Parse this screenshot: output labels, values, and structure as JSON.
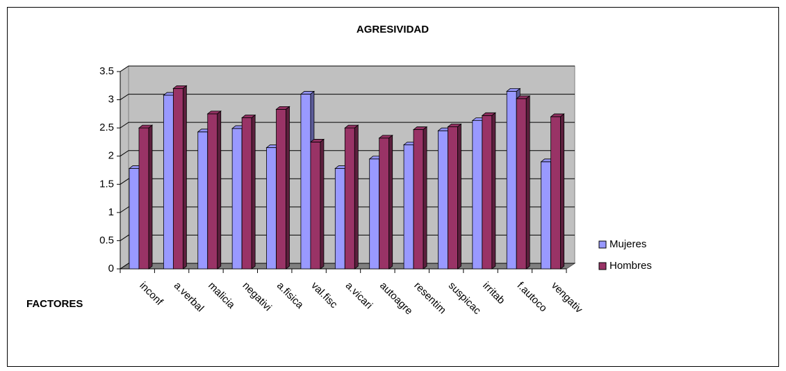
{
  "chart_data": {
    "type": "bar",
    "title": "AGRESIVIDAD",
    "x_label": "FACTORES",
    "categories": [
      "inconf",
      "a.verbal",
      "malicia",
      "negativi",
      "a.fisica",
      "val.fisc",
      "a.vicari",
      "autoagre",
      "resentim",
      "suspicac",
      "irritab",
      "f.autoco",
      "vengativ"
    ],
    "series": [
      {
        "name": "Mujeres",
        "color": "#9999ff",
        "values": [
          1.78,
          3.08,
          2.43,
          2.49,
          2.15,
          3.1,
          1.78,
          1.95,
          2.2,
          2.45,
          2.63,
          3.15,
          1.9
        ]
      },
      {
        "name": "Hombres",
        "color": "#993366",
        "values": [
          2.5,
          3.2,
          2.75,
          2.68,
          2.83,
          2.25,
          2.5,
          2.32,
          2.47,
          2.52,
          2.72,
          3.02,
          2.7
        ]
      }
    ],
    "ylim": [
      0,
      3.5
    ],
    "yticks": [
      0,
      0.5,
      1,
      1.5,
      2,
      2.5,
      3,
      3.5
    ],
    "grid": true,
    "legend": "right"
  }
}
